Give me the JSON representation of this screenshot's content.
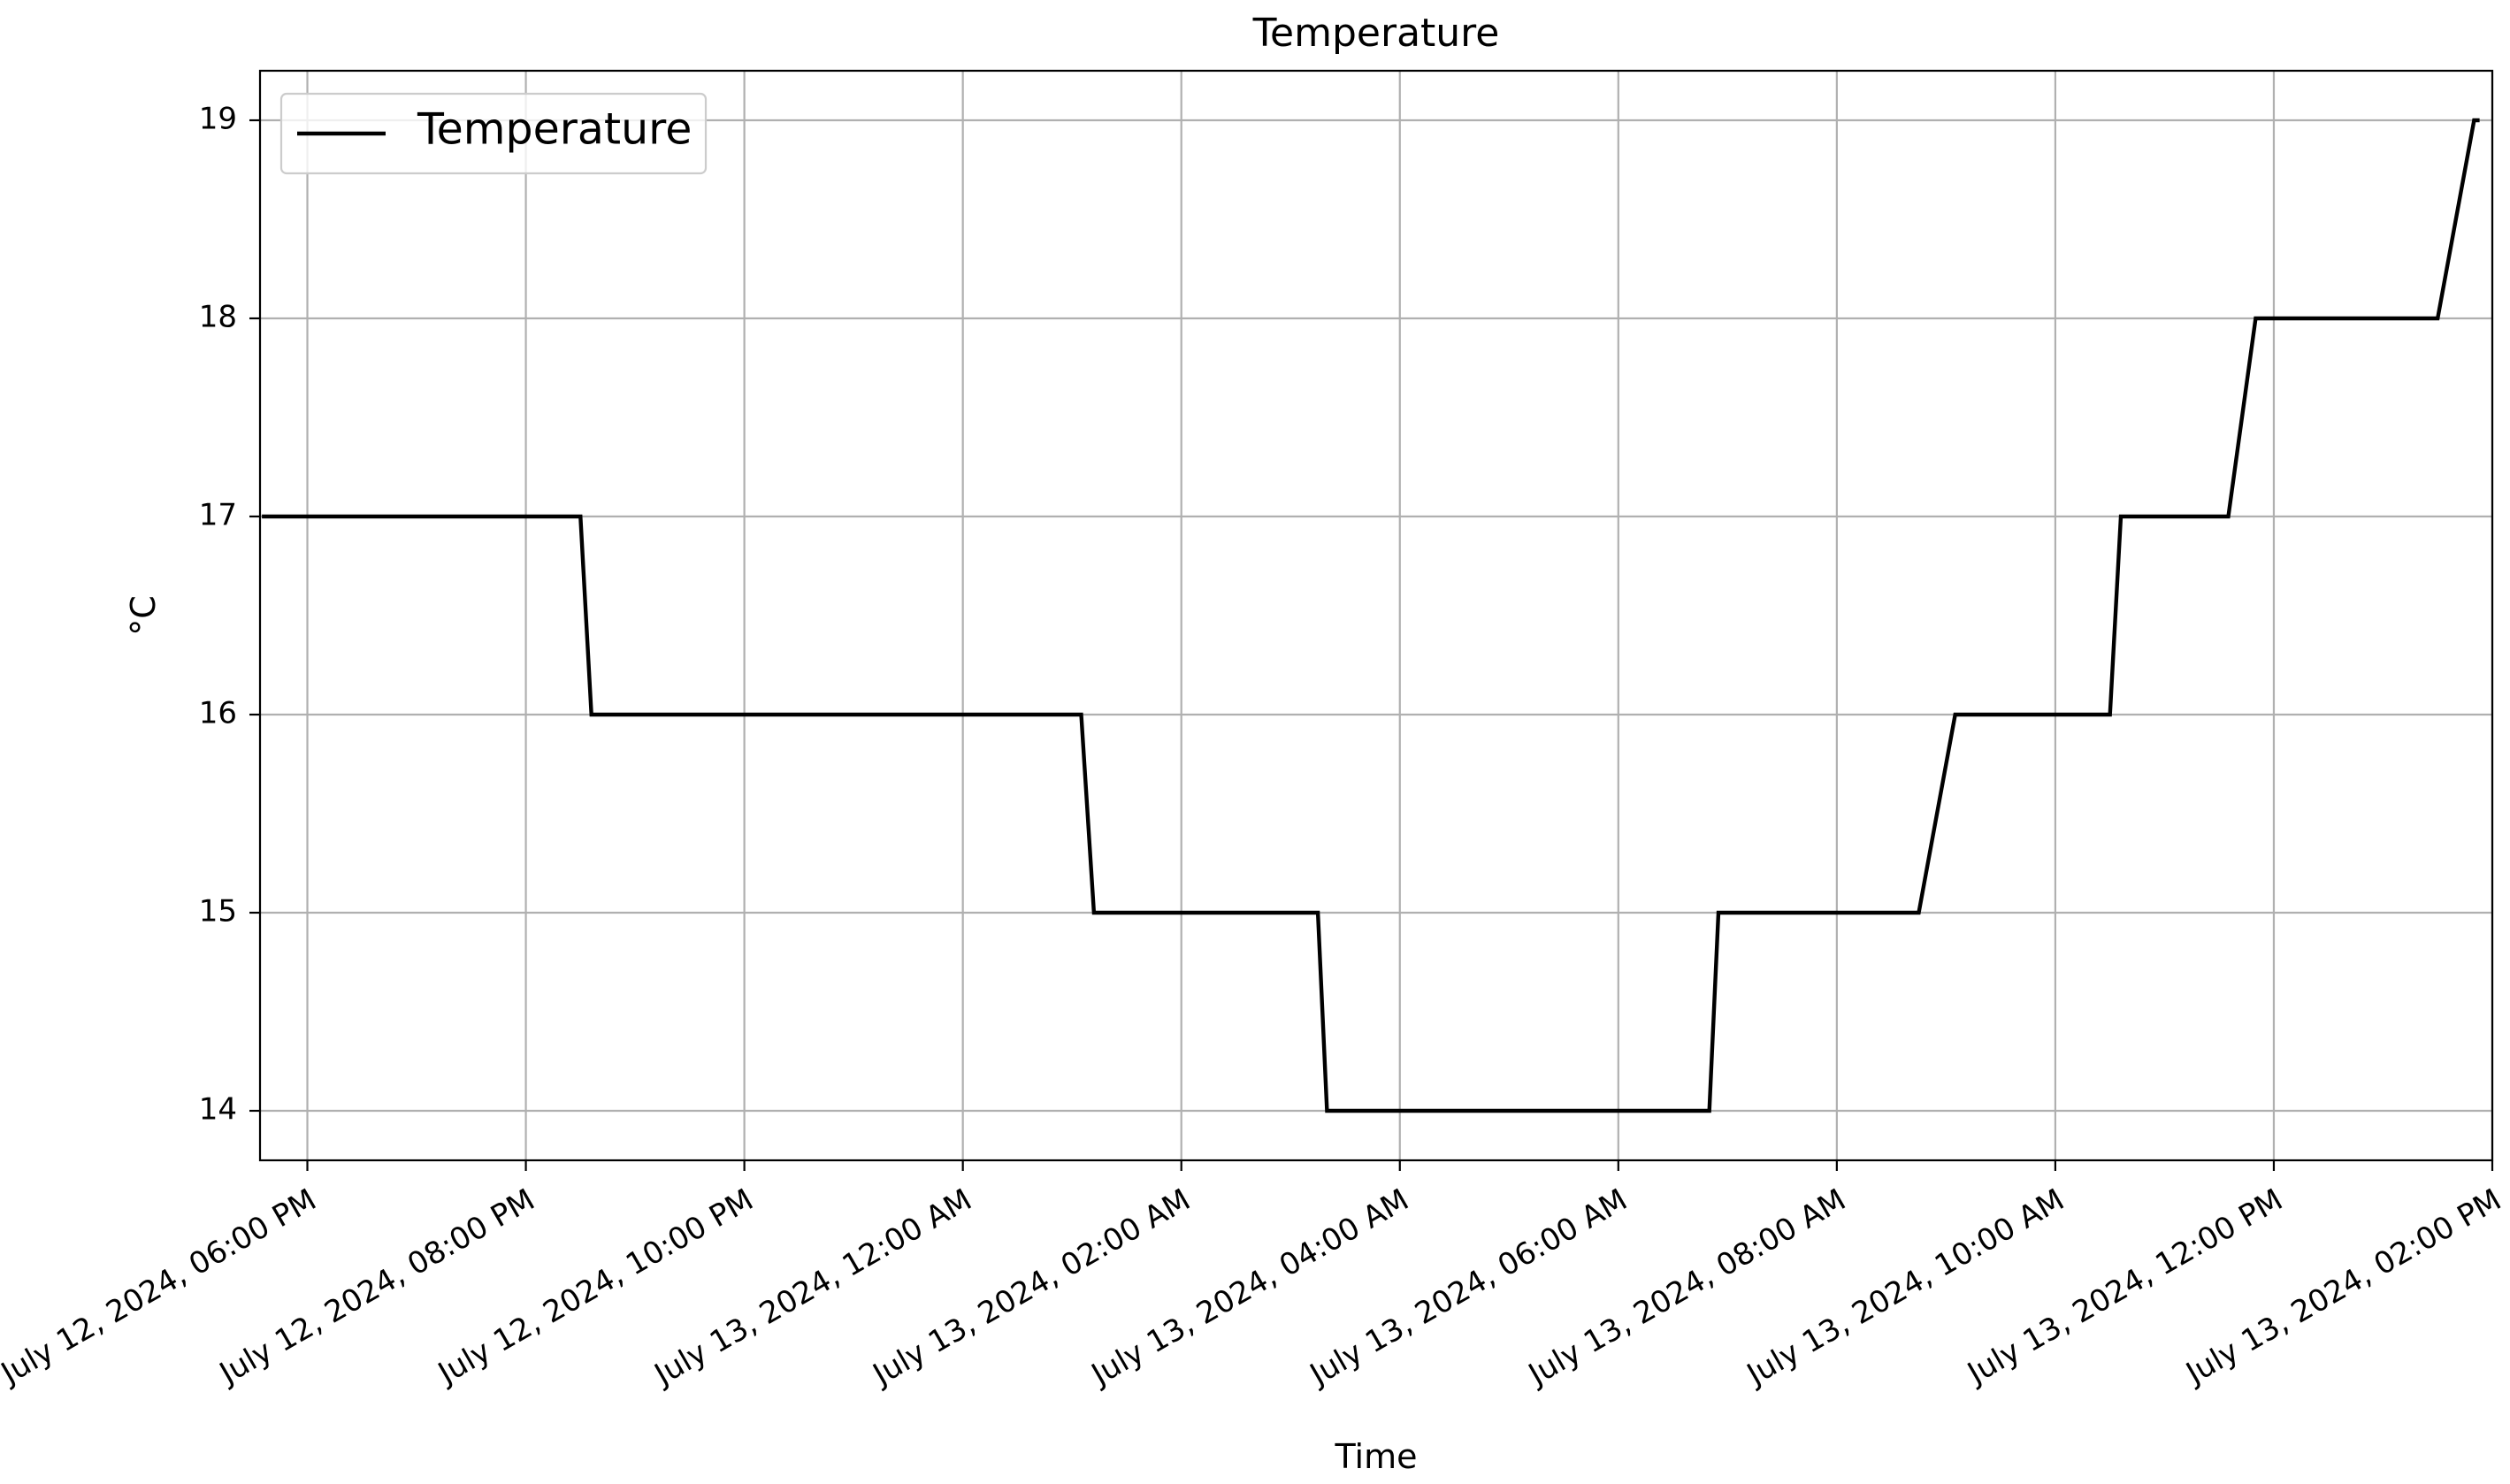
{
  "chart_data": {
    "type": "line",
    "title": "Temperature",
    "xlabel": "Time",
    "ylabel": "°C",
    "x_axis": {
      "kind": "datetime",
      "range": [
        "2024-07-12T17:34",
        "2024-07-13T14:00"
      ],
      "ticks": [
        {
          "value": "2024-07-12T18:00",
          "label": "July 12, 2024, 06:00 PM"
        },
        {
          "value": "2024-07-12T20:00",
          "label": "July 12, 2024, 08:00 PM"
        },
        {
          "value": "2024-07-12T22:00",
          "label": "July 12, 2024, 10:00 PM"
        },
        {
          "value": "2024-07-13T00:00",
          "label": "July 13, 2024, 12:00 AM"
        },
        {
          "value": "2024-07-13T02:00",
          "label": "July 13, 2024, 02:00 AM"
        },
        {
          "value": "2024-07-13T04:00",
          "label": "July 13, 2024, 04:00 AM"
        },
        {
          "value": "2024-07-13T06:00",
          "label": "July 13, 2024, 06:00 AM"
        },
        {
          "value": "2024-07-13T08:00",
          "label": "July 13, 2024, 08:00 AM"
        },
        {
          "value": "2024-07-13T10:00",
          "label": "July 13, 2024, 10:00 AM"
        },
        {
          "value": "2024-07-13T12:00",
          "label": "July 13, 2024, 12:00 PM"
        },
        {
          "value": "2024-07-13T14:00",
          "label": "July 13, 2024, 02:00 PM"
        }
      ]
    },
    "y_axis": {
      "range": [
        13.75,
        19.25
      ],
      "ticks": [
        14,
        15,
        16,
        17,
        18,
        19
      ]
    },
    "grid": true,
    "legend": {
      "placement": "top-left",
      "entries": [
        "Temperature"
      ]
    },
    "series": [
      {
        "name": "Temperature",
        "color": "#000000",
        "points": [
          {
            "x": "2024-07-12T17:35",
            "y": 17
          },
          {
            "x": "2024-07-12T20:30",
            "y": 17
          },
          {
            "x": "2024-07-12T20:36",
            "y": 16
          },
          {
            "x": "2024-07-13T01:05",
            "y": 16
          },
          {
            "x": "2024-07-13T01:12",
            "y": 15
          },
          {
            "x": "2024-07-13T03:15",
            "y": 15
          },
          {
            "x": "2024-07-13T03:20",
            "y": 14
          },
          {
            "x": "2024-07-13T06:50",
            "y": 14
          },
          {
            "x": "2024-07-13T06:55",
            "y": 15
          },
          {
            "x": "2024-07-13T08:45",
            "y": 15
          },
          {
            "x": "2024-07-13T09:05",
            "y": 16
          },
          {
            "x": "2024-07-13T10:30",
            "y": 16
          },
          {
            "x": "2024-07-13T10:36",
            "y": 17
          },
          {
            "x": "2024-07-13T11:35",
            "y": 17
          },
          {
            "x": "2024-07-13T11:50",
            "y": 18
          },
          {
            "x": "2024-07-13T13:30",
            "y": 18
          },
          {
            "x": "2024-07-13T13:50",
            "y": 19
          },
          {
            "x": "2024-07-13T13:53",
            "y": 19
          }
        ]
      }
    ]
  }
}
